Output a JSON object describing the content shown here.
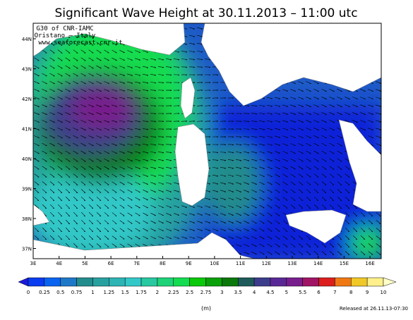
{
  "title": "Significant Wave Height at 30.11.2013 – 11:00 utc",
  "credits": [
    "G30 of CNR-IAMC",
    "Oristano – Italy",
    "www.seaforecast.cnr.it"
  ],
  "lat_labels": [
    "44N",
    "43N",
    "42N",
    "41N",
    "40N",
    "39N",
    "38N",
    "37N"
  ],
  "lon_labels": [
    "3E",
    "4E",
    "5E",
    "6E",
    "7E",
    "8E",
    "9E",
    "10E",
    "11E",
    "12E",
    "13E",
    "14E",
    "15E",
    "16E"
  ],
  "colorbar": {
    "ticks": [
      "0",
      "0.25",
      "0.5",
      "0.75",
      "1",
      "1.25",
      "1.5",
      "1.75",
      "2",
      "2.25",
      "2.5",
      "2.75",
      "3",
      "3.5",
      "4",
      "4.5",
      "5",
      "5.5",
      "6",
      "7",
      "8",
      "9",
      "10"
    ],
    "colors": [
      "#1a1adc",
      "#0a3cf0",
      "#0a64f0",
      "#1e78c8",
      "#238c8c",
      "#28a0a0",
      "#2db4b4",
      "#32c8c8",
      "#28c8a0",
      "#1ed278",
      "#14dc50",
      "#0ac80a",
      "#0aa00a",
      "#0a780a",
      "#1e5a5a",
      "#3c3c8c",
      "#5a2896",
      "#781e8c",
      "#a01464",
      "#dc1e1e",
      "#f07814",
      "#f0c828",
      "#fff08c",
      "#ffffc8"
    ]
  },
  "unit": "(m)",
  "release": "Released at 26.11.13-07:30"
}
